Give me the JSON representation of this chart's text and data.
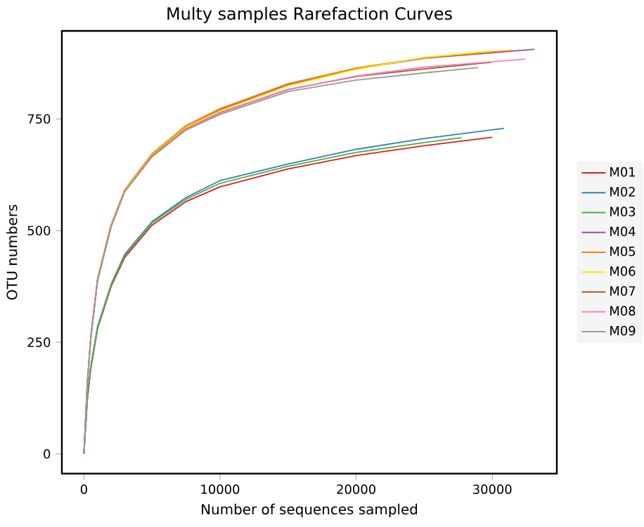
{
  "chart_data": {
    "type": "line",
    "title": "Multy samples Rarefaction Curves",
    "xlabel": "Number of sequences sampled",
    "ylabel": "OTU numbers",
    "xlim": [
      -1620,
      34740
    ],
    "ylim": [
      -44,
      947
    ],
    "xticks": [
      0,
      10000,
      20000,
      30000
    ],
    "yticks": [
      0,
      250,
      500,
      750
    ],
    "grid": false,
    "legend": "right",
    "marker": "none",
    "line_style": "solid",
    "series": [
      {
        "name": "M01",
        "color": "#e41a1c",
        "x": [
          0,
          250,
          500,
          1000,
          2000,
          3000,
          5000,
          7500,
          10000,
          15000,
          20000,
          25000,
          30000
        ],
        "values": [
          0,
          120,
          190,
          280,
          375,
          440,
          512,
          565,
          598,
          638,
          668,
          690,
          709
        ]
      },
      {
        "name": "M02",
        "color": "#377eb8",
        "x": [
          0,
          250,
          500,
          1000,
          2000,
          3000,
          5000,
          7500,
          10000,
          15000,
          20000,
          25000,
          30860
        ],
        "values": [
          0,
          125,
          195,
          285,
          380,
          447,
          520,
          574,
          612,
          649,
          682,
          706,
          729
        ]
      },
      {
        "name": "M03",
        "color": "#4daf4a",
        "x": [
          0,
          250,
          500,
          1000,
          2000,
          3000,
          5000,
          7500,
          10000,
          15000,
          20000,
          25000,
          27760
        ],
        "values": [
          0,
          123,
          193,
          283,
          378,
          444,
          517,
          570,
          606,
          644,
          675,
          697,
          708
        ]
      },
      {
        "name": "M04",
        "color": "#984ea3",
        "x": [
          500,
          1000,
          2000,
          3000,
          5000,
          7500,
          10000,
          15000,
          20000,
          25000,
          30000,
          33100
        ],
        "values": [
          260,
          390,
          512,
          590,
          670,
          732,
          770,
          827,
          862,
          886,
          898,
          906
        ]
      },
      {
        "name": "M05",
        "color": "#ff7f00",
        "x": [
          0,
          250,
          500,
          1000,
          2000,
          3000,
          5000,
          7500,
          10000,
          15000,
          20000,
          25000,
          30000,
          31550
        ],
        "values": [
          0,
          162,
          262,
          392,
          514,
          592,
          672,
          735,
          773,
          829,
          864,
          887,
          900,
          903
        ]
      },
      {
        "name": "M06",
        "color": "#ffe800",
        "x": [
          2000,
          3000,
          5000,
          7500,
          10000,
          15000,
          20000,
          25000,
          30000
        ],
        "values": [
          512,
          590,
          669,
          731,
          768,
          824,
          861,
          888,
          902
        ]
      },
      {
        "name": "M07",
        "color": "#a65628",
        "x": [
          0,
          250,
          500,
          1000,
          2000,
          3000,
          5000,
          7500,
          10000,
          15000,
          20000,
          25000,
          29930
        ],
        "values": [
          0,
          158,
          258,
          388,
          510,
          588,
          667,
          728,
          764,
          816,
          845,
          862,
          877
        ]
      },
      {
        "name": "M08",
        "color": "#f781bf",
        "x": [
          0,
          250,
          500,
          1000,
          2000,
          3000,
          5000,
          7500,
          10000,
          15000,
          20000,
          25000,
          30000,
          32410
        ],
        "values": [
          0,
          158,
          258,
          388,
          510,
          588,
          666,
          727,
          763,
          815,
          846,
          866,
          878,
          884
        ]
      },
      {
        "name": "M09",
        "color": "#999999",
        "x": [
          0,
          250,
          500,
          1000,
          2000,
          3000,
          5000,
          7500,
          10000,
          15000,
          20000,
          25000,
          28970
        ],
        "values": [
          0,
          157,
          257,
          387,
          509,
          587,
          665,
          725,
          760,
          811,
          837,
          853,
          865
        ]
      }
    ]
  }
}
